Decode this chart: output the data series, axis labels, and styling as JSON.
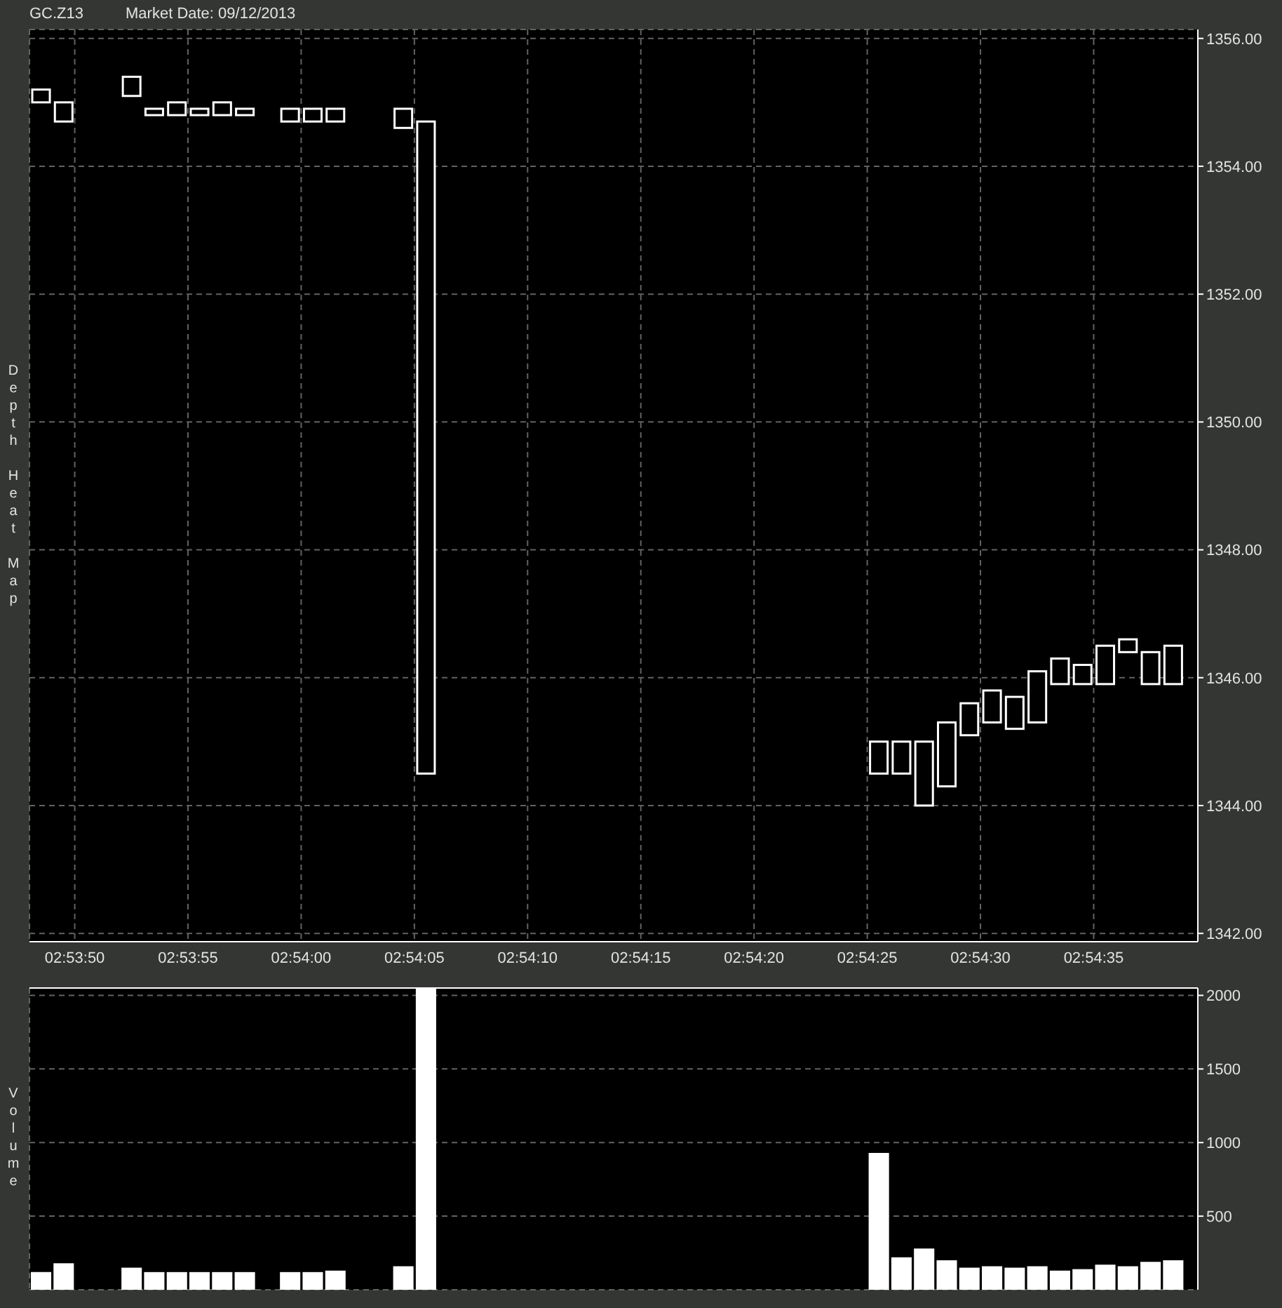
{
  "chart_data": [
    {
      "type": "candlestick",
      "title": "GC.Z13",
      "subtitle": "Market Date: 09/12/2013",
      "ylabel": "Depth Heat Map",
      "x": [
        2.8968056,
        2.8970833,
        2.8979167,
        2.8981944,
        2.8984722,
        2.89875,
        2.8990278,
        2.8993056,
        2.8998611,
        2.9001389,
        2.9004167,
        2.90125,
        2.9015278,
        2.9070833,
        2.9073611,
        2.9076389,
        2.9079167,
        2.9081944,
        2.9084722,
        2.90875,
        2.9090278,
        2.9093056,
        2.9095833,
        2.9098611,
        2.9101389,
        2.9104167,
        2.9106944
      ],
      "ohlc": [
        [
          1355.2,
          1355.2,
          1355.0,
          1355.0
        ],
        [
          1355.0,
          1355.0,
          1354.7,
          1354.7
        ],
        [
          1355.4,
          1355.4,
          1355.1,
          1355.1
        ],
        [
          1354.9,
          1354.9,
          1354.8,
          1354.8
        ],
        [
          1355.0,
          1355.0,
          1354.8,
          1354.8
        ],
        [
          1354.9,
          1354.9,
          1354.8,
          1354.8
        ],
        [
          1355.0,
          1355.0,
          1354.8,
          1354.8
        ],
        [
          1354.9,
          1354.9,
          1354.8,
          1354.8
        ],
        [
          1354.9,
          1354.9,
          1354.7,
          1354.7
        ],
        [
          1354.9,
          1354.9,
          1354.7,
          1354.7
        ],
        [
          1354.9,
          1354.9,
          1354.7,
          1354.7
        ],
        [
          1354.9,
          1354.9,
          1354.6,
          1354.6
        ],
        [
          1354.7,
          1354.7,
          1344.5,
          1344.5
        ],
        [
          1345.0,
          1345.0,
          1344.5,
          1344.5
        ],
        [
          1345.0,
          1345.0,
          1344.5,
          1344.5
        ],
        [
          1345.0,
          1345.0,
          1344.0,
          1344.0
        ],
        [
          1345.3,
          1345.3,
          1344.3,
          1344.3
        ],
        [
          1345.6,
          1345.6,
          1345.1,
          1345.1
        ],
        [
          1345.8,
          1345.8,
          1345.3,
          1345.3
        ],
        [
          1345.7,
          1345.7,
          1345.2,
          1345.2
        ],
        [
          1346.1,
          1346.1,
          1345.3,
          1345.3
        ],
        [
          1346.3,
          1346.3,
          1345.9,
          1345.9
        ],
        [
          1346.2,
          1346.2,
          1345.9,
          1345.9
        ],
        [
          1346.5,
          1346.5,
          1345.9,
          1345.9
        ],
        [
          1346.6,
          1346.6,
          1346.4,
          1346.4
        ],
        [
          1346.4,
          1346.4,
          1345.9,
          1345.9
        ],
        [
          1346.5,
          1346.5,
          1345.9,
          1345.9
        ]
      ],
      "color": "#ffffff",
      "xlim": [
        2.8966667,
        2.911
      ],
      "xticks": [
        {
          "value": 2.8972222,
          "label": "02:53:50"
        },
        {
          "value": 2.8986111,
          "label": "02:53:55"
        },
        {
          "value": 2.9,
          "label": "02:54:00"
        },
        {
          "value": 2.9013889,
          "label": "02:54:05"
        },
        {
          "value": 2.9027778,
          "label": "02:54:10"
        },
        {
          "value": 2.9041667,
          "label": "02:54:15"
        },
        {
          "value": 2.9055556,
          "label": "02:54:20"
        },
        {
          "value": 2.9069444,
          "label": "02:54:25"
        },
        {
          "value": 2.9083333,
          "label": "02:54:30"
        },
        {
          "value": 2.9097222,
          "label": "02:54:35"
        }
      ],
      "ylim": [
        1341.87,
        1356.14
      ],
      "yticks": [
        {
          "value": 1342,
          "label": "1342.00"
        },
        {
          "value": 1344,
          "label": "1344.00"
        },
        {
          "value": 1346,
          "label": "1346.00"
        },
        {
          "value": 1348,
          "label": "1348.00"
        },
        {
          "value": 1350,
          "label": "1350.00"
        },
        {
          "value": 1352,
          "label": "1352.00"
        },
        {
          "value": 1354,
          "label": "1354.00"
        },
        {
          "value": 1356,
          "label": "1356.00"
        }
      ],
      "grid": true
    },
    {
      "type": "bar",
      "ylabel": "Volume",
      "x": [
        2.8968056,
        2.8970833,
        2.8979167,
        2.8981944,
        2.8984722,
        2.89875,
        2.8990278,
        2.8993056,
        2.8998611,
        2.9001389,
        2.9004167,
        2.90125,
        2.9015278,
        2.9070833,
        2.9073611,
        2.9076389,
        2.9079167,
        2.9081944,
        2.9084722,
        2.90875,
        2.9090278,
        2.9093056,
        2.9095833,
        2.9098611,
        2.9101389,
        2.9104167,
        2.9106944
      ],
      "values": [
        120,
        180,
        150,
        120,
        120,
        120,
        120,
        120,
        120,
        120,
        130,
        160,
        2050,
        930,
        220,
        280,
        200,
        150,
        160,
        150,
        160,
        130,
        140,
        170,
        160,
        190,
        200
      ],
      "color": "#ffffff",
      "xlim": [
        2.8966667,
        2.911
      ],
      "xticks": [
        {
          "value": 2.8972222,
          "label": null
        },
        {
          "value": 2.8986111,
          "label": null
        },
        {
          "value": 2.9,
          "label": null
        },
        {
          "value": 2.9013889,
          "label": null
        },
        {
          "value": 2.9027778,
          "label": null
        },
        {
          "value": 2.9041667,
          "label": null
        },
        {
          "value": 2.9055556,
          "label": null
        },
        {
          "value": 2.9069444,
          "label": null
        },
        {
          "value": 2.9083333,
          "label": null
        },
        {
          "value": 2.9097222,
          "label": null
        }
      ],
      "ylim": [
        0,
        2050
      ],
      "yticks": [
        500,
        1000,
        1500,
        2000
      ],
      "grid": true,
      "tick_labels": "y"
    }
  ]
}
